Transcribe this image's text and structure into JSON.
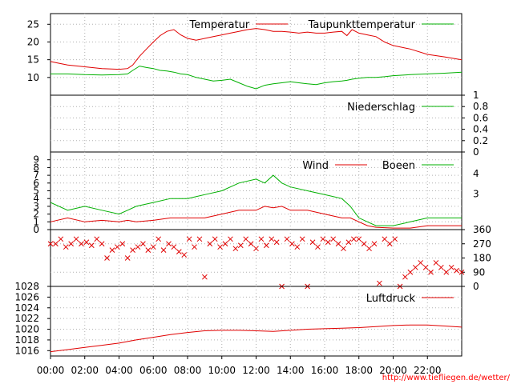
{
  "credit": "http://www.tiefliegen.de/wetter/",
  "colors": {
    "red": "#e00000",
    "green": "#00b000",
    "grid": "#b0b0b0",
    "axis": "#000000"
  },
  "x_ticks": [
    "00:00",
    "02:00",
    "04:00",
    "06:00",
    "08:00",
    "10:00",
    "12:00",
    "14:00",
    "16:00",
    "18:00",
    "20:00",
    "22:00"
  ],
  "chart_data": [
    {
      "type": "line",
      "id": "temperature",
      "x_hours": [
        0,
        0.5,
        1,
        2,
        3,
        4,
        4.5,
        4.8,
        5.2,
        5.6,
        6,
        6.4,
        6.8,
        7.2,
        7.6,
        8,
        8.5,
        9,
        9.5,
        10,
        10.5,
        11,
        11.5,
        12,
        12.5,
        13,
        13.5,
        14,
        14.5,
        15,
        15.5,
        16,
        16.5,
        17,
        17.3,
        17.6,
        18,
        18.5,
        19,
        19.5,
        20,
        21,
        22,
        23,
        24
      ],
      "yticks": [
        10,
        15,
        20,
        25
      ],
      "ylim": [
        5,
        28
      ],
      "series": [
        {
          "name": "Temperatur",
          "color": "#e00000",
          "values": [
            14.5,
            14.0,
            13.5,
            13.0,
            12.5,
            12.3,
            12.5,
            13.5,
            16.0,
            18.0,
            20.0,
            21.8,
            23.0,
            23.5,
            22.0,
            21.0,
            20.5,
            21.0,
            21.5,
            22.0,
            22.5,
            23.0,
            23.5,
            23.8,
            23.5,
            23.0,
            23.0,
            22.8,
            22.5,
            22.8,
            22.5,
            22.5,
            22.8,
            23.0,
            21.8,
            23.5,
            22.5,
            22.0,
            21.5,
            20.0,
            19.0,
            18.0,
            16.5,
            15.8,
            15.0
          ]
        },
        {
          "name": "Taupunkttemperatur",
          "color": "#00b000",
          "values": [
            11.0,
            11.0,
            11.0,
            10.8,
            10.7,
            10.8,
            11.0,
            12.0,
            13.2,
            12.8,
            12.5,
            12.0,
            11.8,
            11.5,
            11.0,
            10.8,
            10.0,
            9.5,
            9.0,
            9.2,
            9.5,
            8.5,
            7.5,
            6.8,
            7.8,
            8.2,
            8.5,
            8.8,
            8.5,
            8.2,
            8.0,
            8.5,
            8.8,
            9.0,
            9.2,
            9.5,
            9.8,
            10.0,
            10.0,
            10.2,
            10.5,
            10.8,
            11.0,
            11.2,
            11.5
          ]
        }
      ]
    },
    {
      "type": "line",
      "id": "precipitation",
      "x_hours": [
        0,
        24
      ],
      "yticks": [
        0,
        0.2,
        0.4,
        0.6,
        0.8,
        1
      ],
      "ylim": [
        0,
        1
      ],
      "series": [
        {
          "name": "Niederschlag",
          "color": "#00b000",
          "values": [
            0,
            0
          ]
        }
      ]
    },
    {
      "type": "line",
      "id": "wind",
      "x_hours": [
        0,
        1,
        2,
        3,
        4,
        4.5,
        5,
        6,
        7,
        8,
        9,
        10,
        11,
        12,
        12.5,
        13,
        13.5,
        14,
        15,
        16,
        17,
        17.5,
        18,
        18.5,
        19,
        20,
        21,
        22,
        23,
        24
      ],
      "yticks": [
        0,
        1,
        2,
        3,
        4,
        5,
        6,
        7,
        8,
        9
      ],
      "ylim": [
        0,
        10
      ],
      "series": [
        {
          "name": "Wind",
          "color": "#e00000",
          "values": [
            1.0,
            1.5,
            1.0,
            1.2,
            1.0,
            1.2,
            1.0,
            1.2,
            1.5,
            1.5,
            1.5,
            2.0,
            2.5,
            2.5,
            3.0,
            2.8,
            3.0,
            2.5,
            2.5,
            2.0,
            1.5,
            1.5,
            1.0,
            0.5,
            0.3,
            0.2,
            0.2,
            0.5,
            0.5,
            0.5
          ]
        },
        {
          "name": "Boeen",
          "color": "#00b000",
          "values": [
            3.5,
            2.5,
            3.0,
            2.5,
            2.0,
            2.5,
            3.0,
            3.5,
            4.0,
            4.0,
            4.5,
            5.0,
            6.0,
            6.5,
            6.0,
            7.0,
            6.0,
            5.5,
            5.0,
            4.5,
            4.0,
            3.0,
            1.5,
            1.0,
            0.5,
            0.5,
            1.0,
            1.5,
            1.5,
            1.5
          ]
        }
      ]
    },
    {
      "type": "scatter",
      "id": "wind_direction",
      "yticks": [
        0,
        90,
        180,
        270,
        360
      ],
      "ylim": [
        0,
        360
      ],
      "series": [
        {
          "name": "",
          "color": "#e00000",
          "marker": "x",
          "points": [
            [
              0,
              270
            ],
            [
              0.3,
              270
            ],
            [
              0.6,
              300
            ],
            [
              0.9,
              250
            ],
            [
              1.2,
              270
            ],
            [
              1.5,
              300
            ],
            [
              1.8,
              270
            ],
            [
              2.1,
              280
            ],
            [
              2.4,
              260
            ],
            [
              2.7,
              300
            ],
            [
              3.0,
              270
            ],
            [
              3.3,
              180
            ],
            [
              3.6,
              230
            ],
            [
              3.9,
              250
            ],
            [
              4.2,
              270
            ],
            [
              4.5,
              180
            ],
            [
              4.8,
              230
            ],
            [
              5.1,
              250
            ],
            [
              5.4,
              270
            ],
            [
              5.7,
              230
            ],
            [
              6.0,
              250
            ],
            [
              6.3,
              300
            ],
            [
              6.6,
              230
            ],
            [
              6.9,
              270
            ],
            [
              7.2,
              250
            ],
            [
              7.5,
              220
            ],
            [
              7.8,
              200
            ],
            [
              8.1,
              300
            ],
            [
              8.4,
              250
            ],
            [
              8.7,
              300
            ],
            [
              9.0,
              60
            ],
            [
              9.3,
              270
            ],
            [
              9.6,
              300
            ],
            [
              9.9,
              250
            ],
            [
              10.2,
              270
            ],
            [
              10.5,
              300
            ],
            [
              10.8,
              240
            ],
            [
              11.1,
              260
            ],
            [
              11.4,
              300
            ],
            [
              11.7,
              270
            ],
            [
              12.0,
              240
            ],
            [
              12.3,
              300
            ],
            [
              12.6,
              260
            ],
            [
              12.9,
              300
            ],
            [
              13.2,
              280
            ],
            [
              13.5,
              0
            ],
            [
              13.8,
              300
            ],
            [
              14.1,
              270
            ],
            [
              14.4,
              250
            ],
            [
              14.7,
              300
            ],
            [
              15.0,
              0
            ],
            [
              15.3,
              280
            ],
            [
              15.6,
              250
            ],
            [
              15.9,
              300
            ],
            [
              16.2,
              280
            ],
            [
              16.5,
              300
            ],
            [
              16.8,
              270
            ],
            [
              17.1,
              240
            ],
            [
              17.4,
              280
            ],
            [
              17.7,
              300
            ],
            [
              18.0,
              300
            ],
            [
              18.3,
              270
            ],
            [
              18.6,
              240
            ],
            [
              18.9,
              270
            ],
            [
              19.2,
              20
            ],
            [
              19.5,
              300
            ],
            [
              19.8,
              270
            ],
            [
              20.1,
              300
            ],
            [
              20.4,
              0
            ],
            [
              20.7,
              60
            ],
            [
              21.0,
              90
            ],
            [
              21.3,
              120
            ],
            [
              21.6,
              150
            ],
            [
              21.9,
              120
            ],
            [
              22.2,
              90
            ],
            [
              22.5,
              150
            ],
            [
              22.8,
              120
            ],
            [
              23.1,
              90
            ],
            [
              23.4,
              120
            ],
            [
              23.7,
              100
            ],
            [
              24.0,
              90
            ]
          ]
        }
      ]
    },
    {
      "type": "line",
      "id": "pressure",
      "x_hours": [
        0,
        1,
        2,
        3,
        4,
        5,
        6,
        7,
        8,
        9,
        10,
        11,
        12,
        13,
        14,
        15,
        16,
        17,
        18,
        19,
        20,
        21,
        22,
        23,
        24
      ],
      "yticks": [
        1016,
        1018,
        1020,
        1022,
        1024,
        1026,
        1028
      ],
      "ylim": [
        1015,
        1028
      ],
      "series": [
        {
          "name": "Luftdruck",
          "color": "#e00000",
          "values": [
            1015.8,
            1016.2,
            1016.6,
            1017.0,
            1017.4,
            1018.0,
            1018.5,
            1019.0,
            1019.4,
            1019.7,
            1019.8,
            1019.8,
            1019.7,
            1019.6,
            1019.8,
            1020.0,
            1020.1,
            1020.2,
            1020.3,
            1020.5,
            1020.7,
            1020.8,
            1020.8,
            1020.6,
            1020.4
          ]
        }
      ]
    }
  ]
}
